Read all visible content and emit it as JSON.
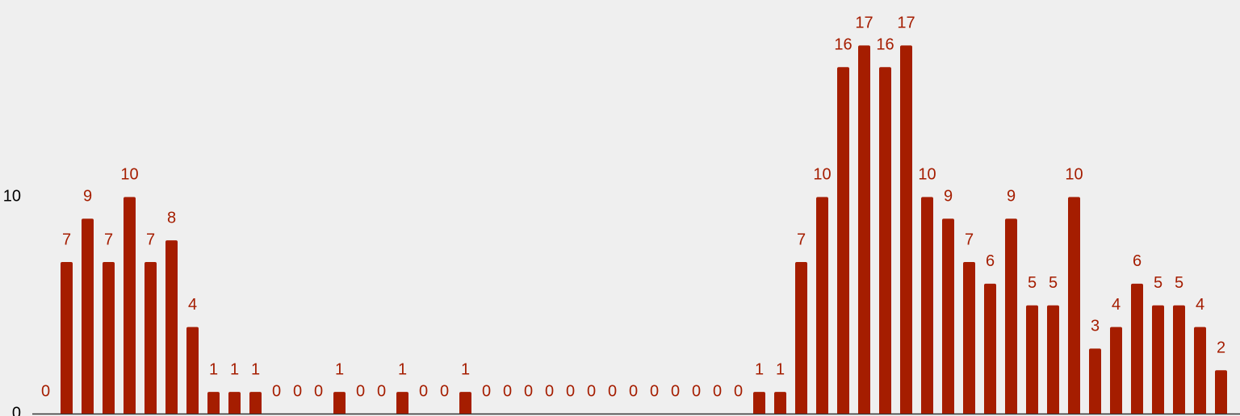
{
  "chart_data": {
    "type": "bar",
    "values": [
      0,
      7,
      9,
      7,
      10,
      7,
      8,
      4,
      1,
      1,
      1,
      0,
      0,
      0,
      1,
      0,
      0,
      1,
      0,
      0,
      1,
      0,
      0,
      0,
      0,
      0,
      0,
      0,
      0,
      0,
      0,
      0,
      0,
      0,
      1,
      1,
      7,
      10,
      16,
      17,
      16,
      17,
      10,
      9,
      7,
      6,
      9,
      5,
      5,
      10,
      3,
      4,
      6,
      5,
      5,
      4,
      2
    ],
    "color": "#a51d00",
    "ylim": [
      0,
      19.1
    ],
    "yticks": [
      0,
      10
    ],
    "grid": false
  }
}
